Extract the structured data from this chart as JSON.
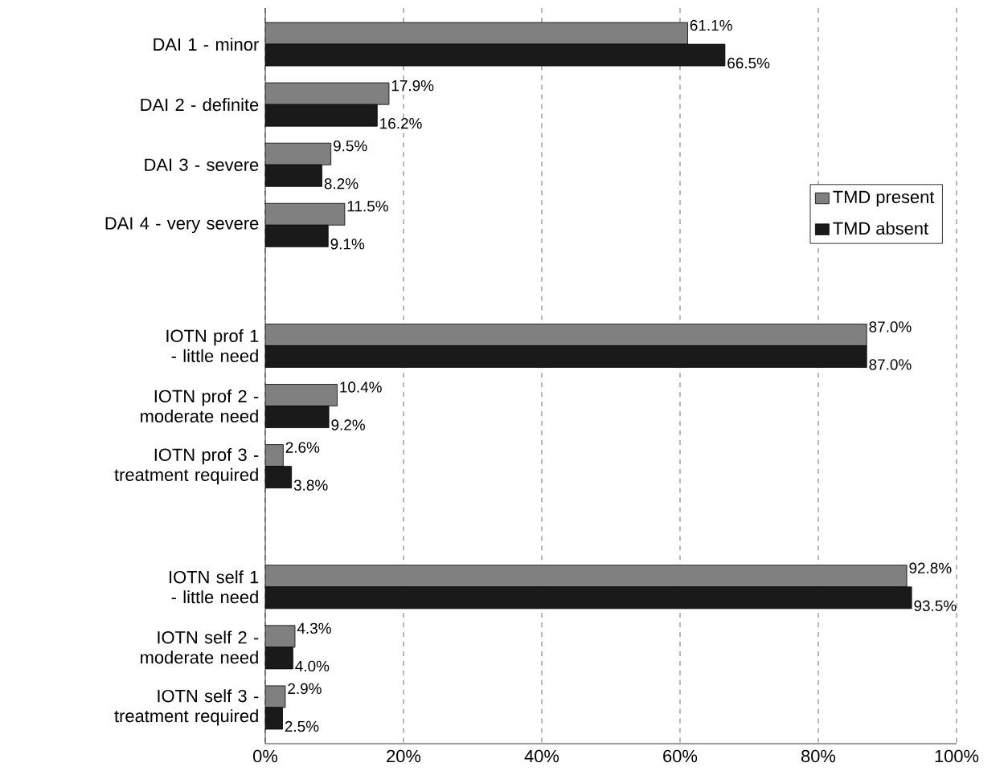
{
  "chart_data": {
    "type": "bar",
    "orientation": "horizontal",
    "categories": [
      "DAI 1 - minor",
      "DAI 2 - definite",
      "DAI 3 - severe",
      "DAI 4 - very severe",
      null,
      "IOTN prof 1 - little need",
      "IOTN prof 2 - moderate need",
      "IOTN prof 3 - treatment required",
      null,
      "IOTN self 1 - little need",
      "IOTN self 2 - moderate need",
      "IOTN self 3 - treatment required"
    ],
    "series": [
      {
        "name": "TMD present",
        "color": "#808080",
        "values": [
          61.1,
          17.9,
          9.5,
          11.5,
          null,
          87.0,
          10.4,
          2.6,
          null,
          92.8,
          4.3,
          2.9
        ],
        "value_labels": [
          "61.1%",
          "17.9%",
          "9.5%",
          "11.5%",
          null,
          "87.0%",
          "10.4%",
          "2.6%",
          null,
          "92.8%",
          "4.3%",
          "2.9%"
        ]
      },
      {
        "name": "TMD absent",
        "color": "#1a1a1a",
        "values": [
          66.5,
          16.2,
          8.2,
          9.1,
          null,
          87.0,
          9.2,
          3.8,
          null,
          93.5,
          4.0,
          2.5
        ],
        "value_labels": [
          "66.5%",
          "16.2%",
          "8.2%",
          "9.1%",
          null,
          "87.0%",
          "9.2%",
          "3.8%",
          null,
          "93.5%",
          "4.0%",
          "2.5%"
        ]
      }
    ],
    "xlim": [
      0,
      100
    ],
    "xticks": [
      {
        "value": 0,
        "label": "0%"
      },
      {
        "value": 20,
        "label": "20%"
      },
      {
        "value": 40,
        "label": "40%"
      },
      {
        "value": 60,
        "label": "60%"
      },
      {
        "value": 80,
        "label": "80%"
      },
      {
        "value": 100,
        "label": "100%"
      }
    ],
    "grid": "x",
    "legend": "right"
  }
}
